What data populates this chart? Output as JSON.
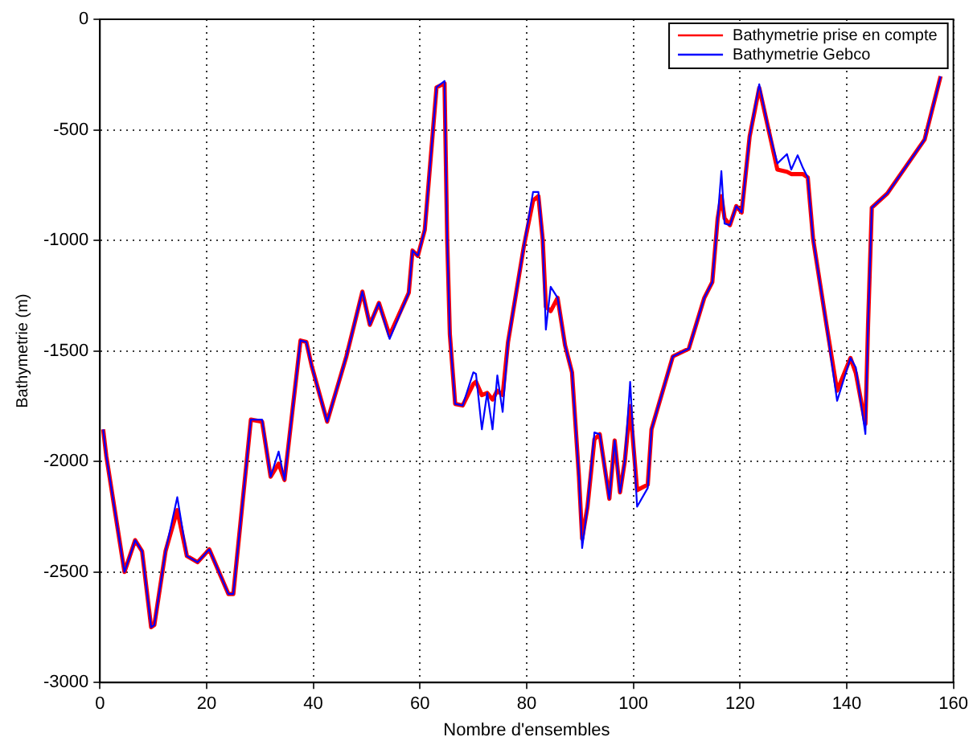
{
  "chart_data": {
    "type": "line",
    "xlabel": "Nombre d'ensembles",
    "ylabel": "Bathymetrie (m)",
    "x": [
      0.6,
      1.2,
      4.6,
      6.6,
      7.9,
      9.6,
      10.2,
      12.3,
      14.5,
      16.3,
      18.3,
      20.5,
      24.1,
      25,
      28.3,
      30.4,
      32,
      33.5,
      34.6,
      37.6,
      38.7,
      39.7,
      42.6,
      46.2,
      49.2,
      50.6,
      52.3,
      54.3,
      57.9,
      58.6,
      59.6,
      60.9,
      63.1,
      64.6,
      65.1,
      65.6,
      66.6,
      68,
      70,
      70.5,
      71.6,
      72.6,
      73.6,
      74.5,
      75.5,
      76.5,
      79.5,
      81.2,
      82.2,
      83,
      83.6,
      84.5,
      85.8,
      87.2,
      88.5,
      89.8,
      90.4,
      91.4,
      92.7,
      93.7,
      95.5,
      96.5,
      97.5,
      98.4,
      99.4,
      100.7,
      102.7,
      103.4,
      107.4,
      110.4,
      113.3,
      114.8,
      115.8,
      116.5,
      117.1,
      118.1,
      119.3,
      120.3,
      121.8,
      123.6,
      125.3,
      127,
      128.8,
      129.6,
      130.8,
      131.8,
      132.7,
      133.7,
      136.2,
      138.2,
      140.7,
      141.7,
      143.5,
      144,
      144.7,
      147.6,
      154.6,
      157.6
    ],
    "series": [
      {
        "name": "Bathymetrie prise en compte",
        "color": "#ff0000",
        "values": [
          -1855,
          -1976,
          -2500,
          -2356,
          -2406,
          -2750,
          -2740,
          -2406,
          -2220,
          -2428,
          -2456,
          -2398,
          -2600,
          -2600,
          -1811,
          -1820,
          -2069,
          -2010,
          -2084,
          -1453,
          -1460,
          -1568,
          -1820,
          -1525,
          -1232,
          -1382,
          -1283,
          -1430,
          -1237,
          -1046,
          -1070,
          -952,
          -308,
          -290,
          -995,
          -1425,
          -1740,
          -1747,
          -1650,
          -1640,
          -1700,
          -1690,
          -1720,
          -1680,
          -1700,
          -1461,
          -1023,
          -820,
          -800,
          -995,
          -1300,
          -1320,
          -1260,
          -1475,
          -1597,
          -2069,
          -2350,
          -2205,
          -1900,
          -1877,
          -2169,
          -1905,
          -2140,
          -1998,
          -1750,
          -2130,
          -2105,
          -1855,
          -1525,
          -1490,
          -1260,
          -1189,
          -902,
          -800,
          -900,
          -931,
          -845,
          -874,
          -530,
          -310,
          -494,
          -680,
          -690,
          -700,
          -700,
          -700,
          -716,
          -995,
          -1382,
          -1680,
          -1532,
          -1600,
          -1830,
          -1382,
          -852,
          -788,
          -544,
          -258
        ]
      },
      {
        "name": "Bathymetrie Gebco",
        "color": "#0000ff",
        "values": [
          -1855,
          -1976,
          -2500,
          -2356,
          -2406,
          -2750,
          -2740,
          -2406,
          -2162,
          -2428,
          -2456,
          -2398,
          -2600,
          -2600,
          -1811,
          -1811,
          -2069,
          -1955,
          -2084,
          -1453,
          -1460,
          -1568,
          -1820,
          -1525,
          -1232,
          -1382,
          -1283,
          -1446,
          -1237,
          -1046,
          -1070,
          -952,
          -308,
          -279,
          -995,
          -1425,
          -1740,
          -1747,
          -1597,
          -1604,
          -1855,
          -1690,
          -1855,
          -1611,
          -1776,
          -1461,
          -1023,
          -781,
          -781,
          -995,
          -1404,
          -1210,
          -1260,
          -1475,
          -1597,
          -2069,
          -2392,
          -2205,
          -1869,
          -1877,
          -2169,
          -1905,
          -2140,
          -1998,
          -1640,
          -2205,
          -2120,
          -1855,
          -1525,
          -1490,
          -1260,
          -1189,
          -902,
          -687,
          -924,
          -931,
          -845,
          -874,
          -530,
          -294,
          -494,
          -652,
          -610,
          -680,
          -615,
          -673,
          -716,
          -995,
          -1382,
          -1726,
          -1532,
          -1575,
          -1876,
          -1382,
          -852,
          -788,
          -544,
          -258
        ]
      }
    ],
    "xlim": [
      0,
      160
    ],
    "xticks": [
      0,
      20,
      40,
      60,
      80,
      100,
      120,
      140,
      160
    ],
    "ylim": [
      -3000,
      0
    ],
    "yticks": [
      -3000,
      -2500,
      -2000,
      -1500,
      -1000,
      -500,
      0
    ],
    "grid": true,
    "legend": "top right",
    "marker": "none",
    "line_style": "solid"
  }
}
